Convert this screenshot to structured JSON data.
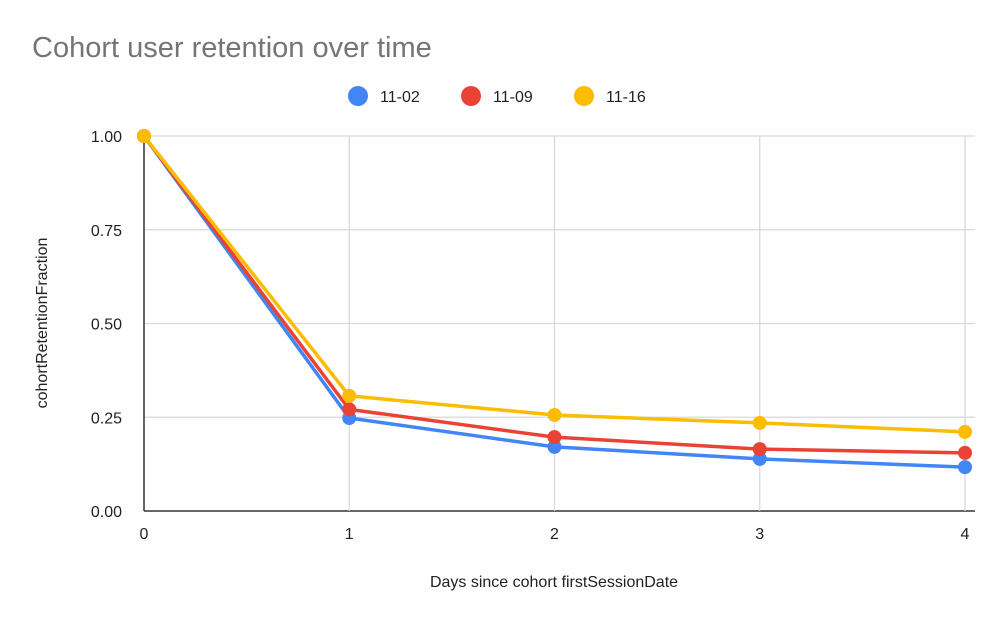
{
  "chart_data": {
    "type": "line",
    "title": "Cohort user retention over time",
    "xlabel": "Days since cohort firstSessionDate",
    "ylabel": "cohortRetentionFraction",
    "x": [
      0,
      1,
      2,
      3,
      4
    ],
    "xlim": [
      0,
      4
    ],
    "ylim": [
      0,
      1
    ],
    "xticks": [
      "0",
      "1",
      "2",
      "3",
      "4"
    ],
    "yticks": [
      "0.00",
      "0.25",
      "0.50",
      "0.75",
      "1.00"
    ],
    "grid": true,
    "legend_position": "top",
    "series": [
      {
        "name": "11-02",
        "color": "#4285F4",
        "values": [
          1.0,
          0.248,
          0.171,
          0.139,
          0.117
        ]
      },
      {
        "name": "11-09",
        "color": "#EA4335",
        "values": [
          1.0,
          0.271,
          0.197,
          0.165,
          0.155
        ]
      },
      {
        "name": "11-16",
        "color": "#FBBC04",
        "values": [
          1.0,
          0.307,
          0.256,
          0.235,
          0.211
        ]
      }
    ]
  }
}
